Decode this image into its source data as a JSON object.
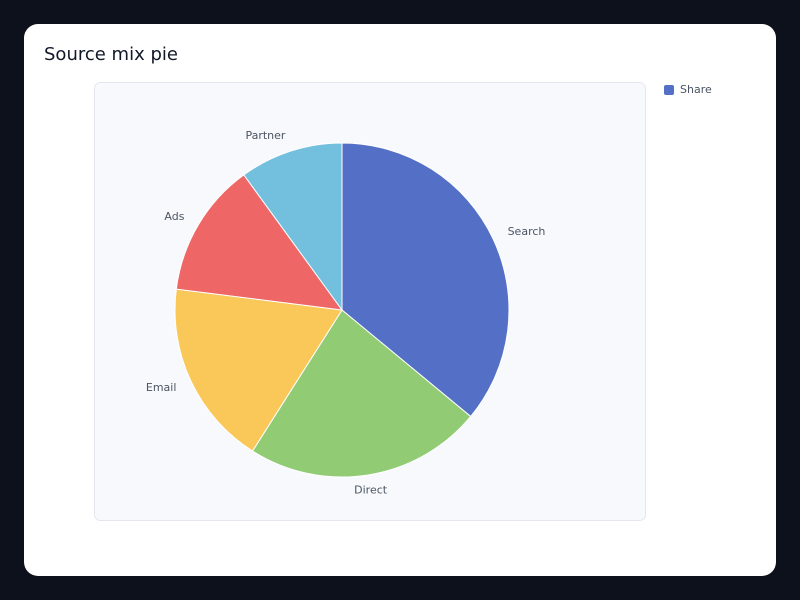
{
  "chart_data": {
    "type": "pie",
    "title": "Source mix pie",
    "categories": [
      "Search",
      "Direct",
      "Email",
      "Ads",
      "Partner"
    ],
    "series": [
      {
        "name": "Share",
        "values": [
          36,
          23,
          18,
          13,
          10
        ]
      }
    ],
    "colors": [
      "#5470c6",
      "#91cc75",
      "#fac858",
      "#ee6666",
      "#73c0de"
    ]
  }
}
